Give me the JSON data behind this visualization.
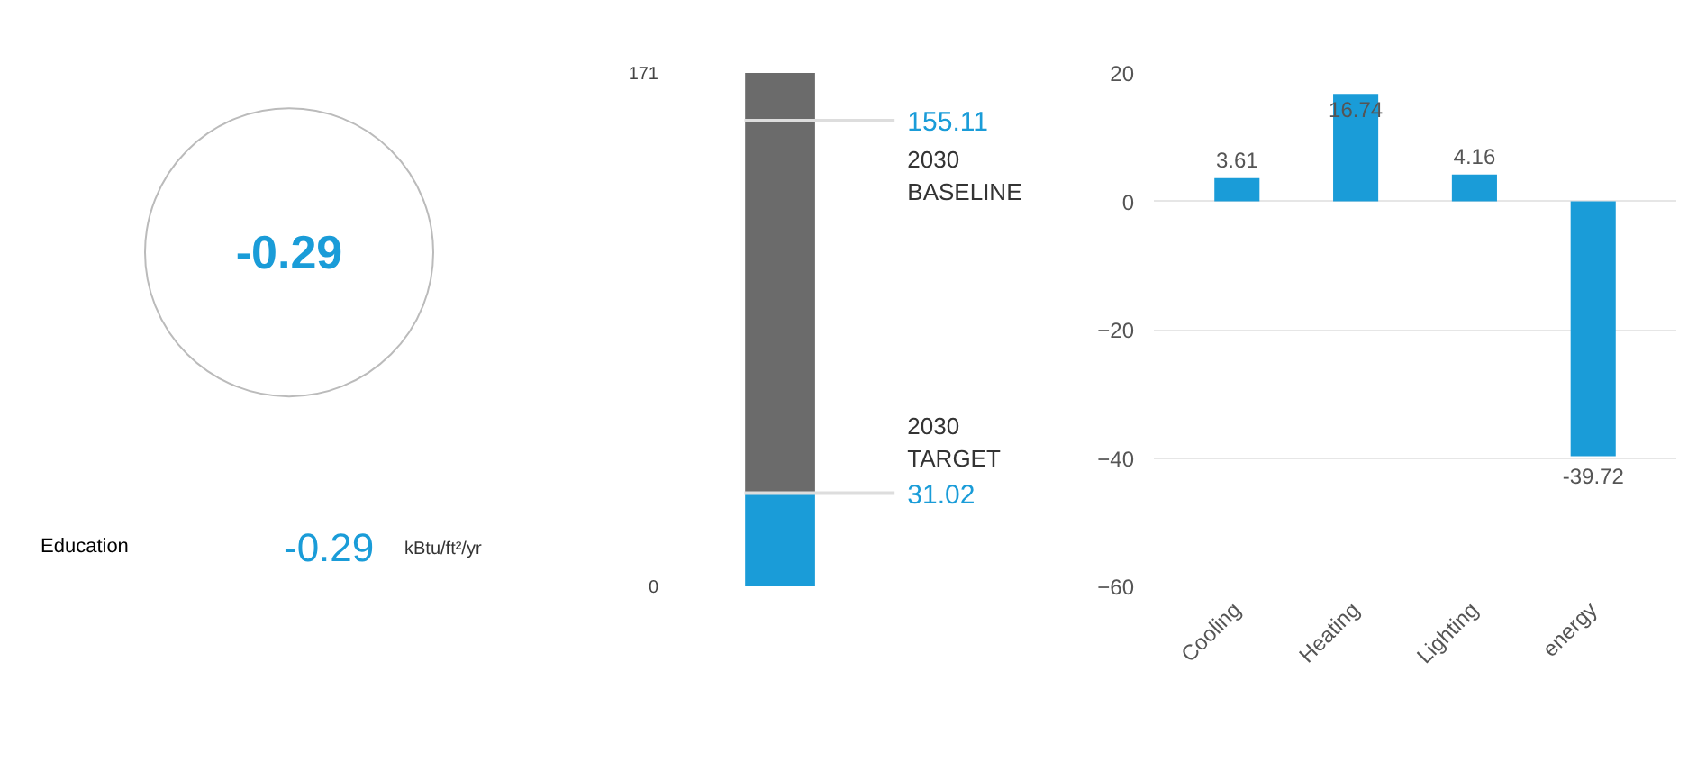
{
  "chart_data": [
    {
      "type": "other",
      "color": "#1a9cd8",
      "annotations": [
        "-0.29",
        "Education",
        "-0.29",
        "kBtu/ft²/yr"
      ]
    },
    {
      "type": "bar",
      "stacked": true,
      "categories": [
        null
      ],
      "ylim": [
        0,
        171
      ],
      "yticks": [
        0,
        171
      ],
      "series": [
        {
          "color": "#1a9cd8",
          "values": [
            31.02
          ]
        },
        {
          "color": "#6b6b6b",
          "values": [
            139.98
          ]
        }
      ],
      "ref_lines": [
        {
          "axis": "y",
          "value": 155.11,
          "label": "2030 BASELINE"
        },
        {
          "axis": "y",
          "value": 31.02,
          "label": "2030 TARGET"
        }
      ],
      "annotations": [
        "155.11",
        "31.02"
      ]
    },
    {
      "type": "bar",
      "categories": [
        "Cooling",
        "Heating",
        "Lighting",
        "energy"
      ],
      "values": [
        3.61,
        16.74,
        4.16,
        -39.72
      ],
      "color": "#1a9cd8",
      "ylim": [
        -60,
        20
      ],
      "yticks": [
        -60,
        -40,
        -20,
        0,
        20
      ],
      "grid": "y",
      "data_labels": true
    }
  ]
}
